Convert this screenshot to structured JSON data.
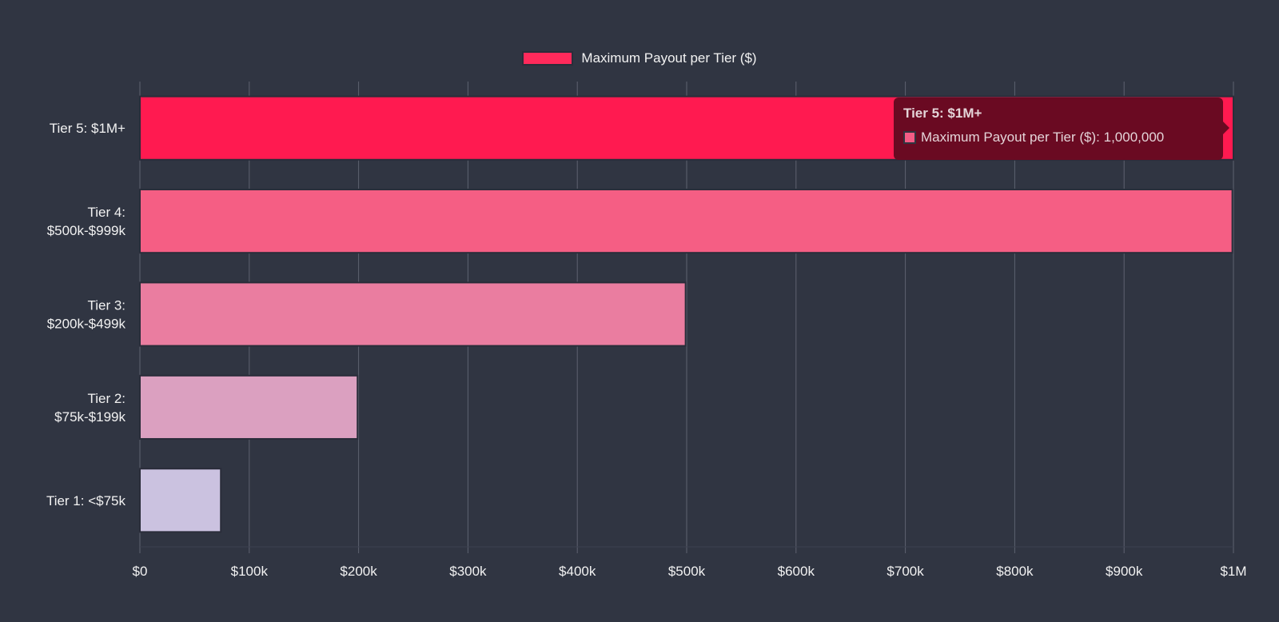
{
  "chart_data": {
    "type": "bar",
    "orientation": "horizontal",
    "categories": [
      [
        "Tier 5: $1M+"
      ],
      [
        "Tier 4:",
        "$500k-$999k"
      ],
      [
        "Tier 3:",
        "$200k-$499k"
      ],
      [
        "Tier 2:",
        "$75k-$199k"
      ],
      [
        "Tier 1: <$75k"
      ]
    ],
    "series": [
      {
        "name": "Maximum Payout per Tier ($)",
        "values": [
          1000000,
          999000,
          499000,
          199000,
          74000
        ],
        "colors": [
          "#ff1a50",
          "#f55e84",
          "#ea7da0",
          "#dba0c0",
          "#cbc2e0"
        ]
      }
    ],
    "xlim": [
      0,
      1000000
    ],
    "x_ticks": [
      "$0",
      "$100k",
      "$200k",
      "$300k",
      "$400k",
      "$500k",
      "$600k",
      "$700k",
      "$800k",
      "$900k",
      "$1M"
    ],
    "x_tick_values": [
      0,
      100000,
      200000,
      300000,
      400000,
      500000,
      600000,
      700000,
      800000,
      900000,
      1000000
    ],
    "grid": true,
    "legend_position": "top"
  },
  "legend": {
    "label": "Maximum Payout per Tier ($)",
    "color": "#ff2a5b"
  },
  "tooltip": {
    "title": "Tier 5: $1M+",
    "body": "Maximum Payout per Tier ($): 1,000,000"
  },
  "colors": {
    "background": "#303542",
    "grid": "#5e6270",
    "text": "#f2f2f2"
  }
}
